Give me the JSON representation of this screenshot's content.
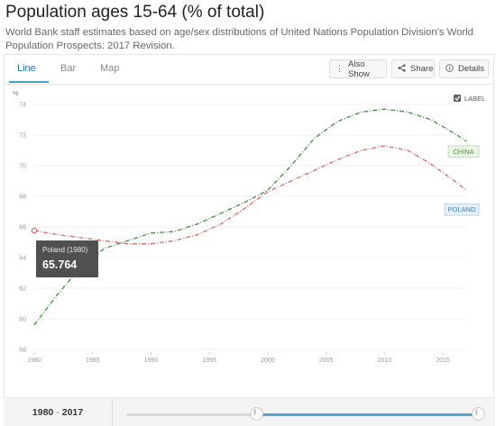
{
  "header": {
    "title": "Population ages 15-64 (% of total)",
    "subtitle": "World Bank staff estimates based on age/sex distributions of United Nations Population Division's World Population Prospects: 2017 Revision."
  },
  "tabs": [
    {
      "label": "Line",
      "active": true
    },
    {
      "label": "Bar",
      "active": false
    },
    {
      "label": "Map",
      "active": false
    }
  ],
  "toolbar": {
    "also_show_label": "Also Show",
    "share_label": "Share",
    "details_label": "Details"
  },
  "chart_label_toggle": "LABEL",
  "tooltip": {
    "title": "Poland (1980)",
    "value": "65.764"
  },
  "range": {
    "start": "1980",
    "end": "2017",
    "start_fraction": 0.0,
    "end_fraction": 1.0,
    "handle_fraction": 0.37
  },
  "colors": {
    "china": "#3e8e3e",
    "poland": "#e06666",
    "accent": "#3ca3d8"
  },
  "chart_data": {
    "type": "line",
    "ylabel": "%",
    "ylim": [
      58,
      74
    ],
    "xlim": [
      1980,
      2017
    ],
    "yticks": [
      58,
      60,
      62,
      64,
      66,
      68,
      70,
      72,
      74
    ],
    "xticks": [
      1980,
      1985,
      1990,
      1995,
      2000,
      2005,
      2010,
      2015
    ],
    "series": [
      {
        "name": "CHINA",
        "x": [
          1980,
          1982,
          1984,
          1986,
          1988,
          1990,
          1992,
          1994,
          1996,
          1998,
          2000,
          2002,
          2004,
          2006,
          2008,
          2010,
          2012,
          2014,
          2016,
          2017
        ],
        "values": [
          59.6,
          61.6,
          63.4,
          64.6,
          65.1,
          65.6,
          65.7,
          66.2,
          66.9,
          67.6,
          68.4,
          70.0,
          71.8,
          72.9,
          73.5,
          73.7,
          73.5,
          73.0,
          72.1,
          71.6
        ]
      },
      {
        "name": "POLAND",
        "x": [
          1980,
          1982,
          1984,
          1986,
          1988,
          1990,
          1992,
          1994,
          1996,
          1998,
          2000,
          2002,
          2004,
          2006,
          2008,
          2010,
          2012,
          2014,
          2016,
          2017
        ],
        "values": [
          65.764,
          65.5,
          65.3,
          65.1,
          64.9,
          64.9,
          65.1,
          65.5,
          66.2,
          67.2,
          68.3,
          69.0,
          69.7,
          70.4,
          71.0,
          71.3,
          71.0,
          70.1,
          69.0,
          68.4
        ]
      }
    ]
  }
}
